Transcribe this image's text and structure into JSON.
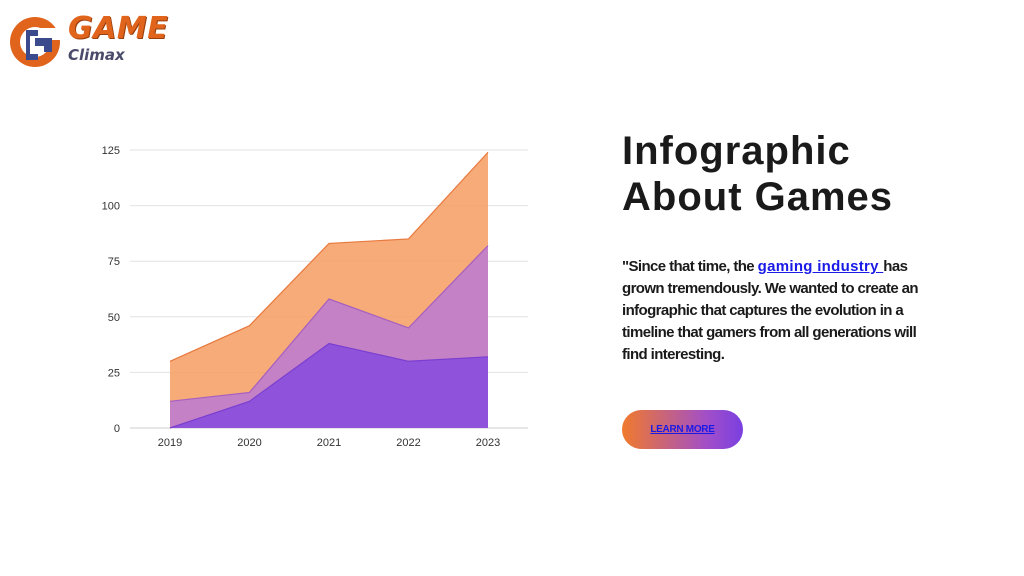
{
  "logo": {
    "wordmark": "GAME",
    "subword": "Climax",
    "colors": {
      "primary": "#e0641c",
      "secondary": "#3b4a8c"
    }
  },
  "hero": {
    "title_line1": "Infographic",
    "title_line2": "About Games",
    "quote_before": "\"Since that time, the ",
    "quote_link": "gaming industry ",
    "quote_after": "has grown tremendously. We wanted to create an infographic that captures the evolution in a timeline that gamers from all generations will find interesting.",
    "cta_label": "LEARN MORE"
  },
  "chart_data": {
    "type": "area",
    "stacked": false,
    "categories": [
      "2019",
      "2020",
      "2021",
      "2022",
      "2023"
    ],
    "yticks": [
      "0",
      "25",
      "50",
      "75",
      "100",
      "125"
    ],
    "ylim": [
      0,
      125
    ],
    "grid": true,
    "series": [
      {
        "values": [
          30,
          46,
          83,
          85,
          124
        ],
        "color": "#f5a26a",
        "stroke": "#e8793e"
      },
      {
        "values": [
          12,
          16,
          58,
          45,
          82
        ],
        "color": "#c07ccd",
        "stroke": "#a55fc0"
      },
      {
        "values": [
          0,
          12,
          38,
          30,
          32
        ],
        "color": "#8a4fdc",
        "stroke": "#7a3fd0"
      }
    ]
  }
}
